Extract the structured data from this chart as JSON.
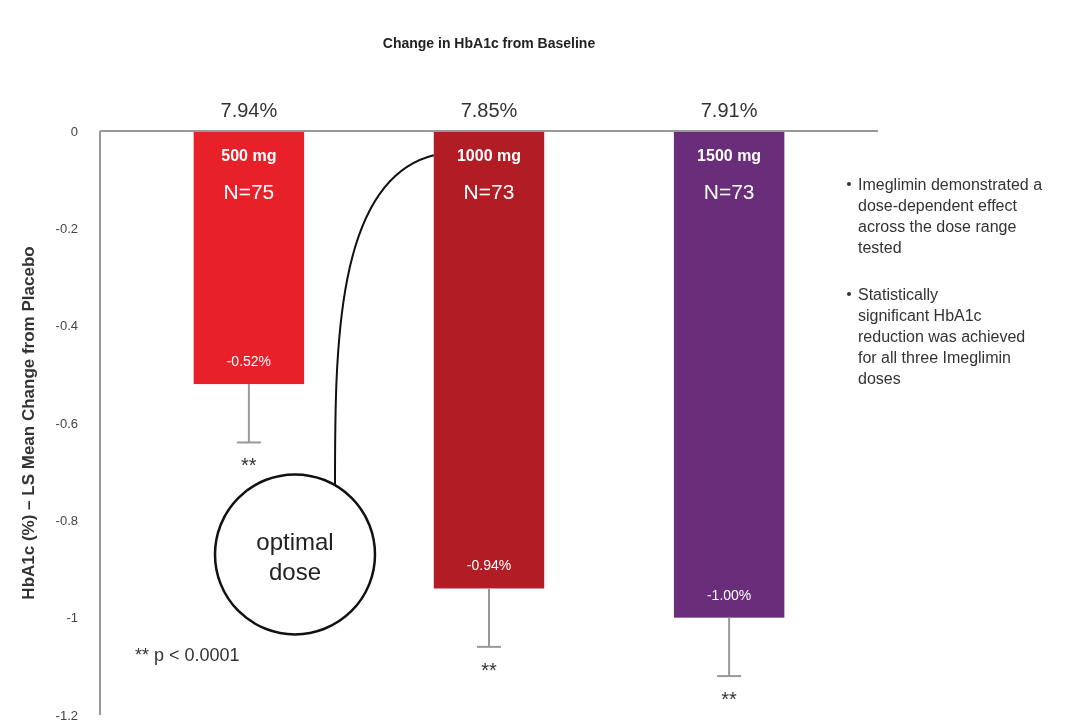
{
  "chart_data": {
    "type": "bar",
    "title": "Change in HbA1c from Baseline",
    "ylabel": "HbA1c (%) – LS Mean Change from Placebo",
    "categories": [
      "500 mg",
      "1000 mg",
      "1500 mg"
    ],
    "values": [
      -0.52,
      -0.94,
      -1.0
    ],
    "colors": [
      "#e8202a",
      "#b21c24",
      "#6a2d7a"
    ],
    "errors": [
      [
        -0.64,
        -0.52
      ],
      [
        -1.06,
        -0.94
      ],
      [
        -1.12,
        -1.0
      ]
    ],
    "value_labels": [
      "-0.52%",
      "-0.94%",
      "-1.00%"
    ],
    "ylim": [
      -1.2,
      0
    ],
    "yticks": [
      0,
      -0.2,
      -0.4,
      -0.6,
      -0.8,
      -1.0,
      -1.2
    ],
    "grid": false,
    "annotations": [
      "7.94%",
      "7.85%",
      "7.91%",
      "N=75",
      "N=73",
      "N=73",
      "**",
      "**",
      "**",
      "optimal dose",
      "** p < 0.0001",
      "Imeglimin demonstrated a dose-dependent effect across the dose range tested",
      "Statistically significant HbA1c reduction was achieved for all three Imeglimin doses"
    ]
  }
}
